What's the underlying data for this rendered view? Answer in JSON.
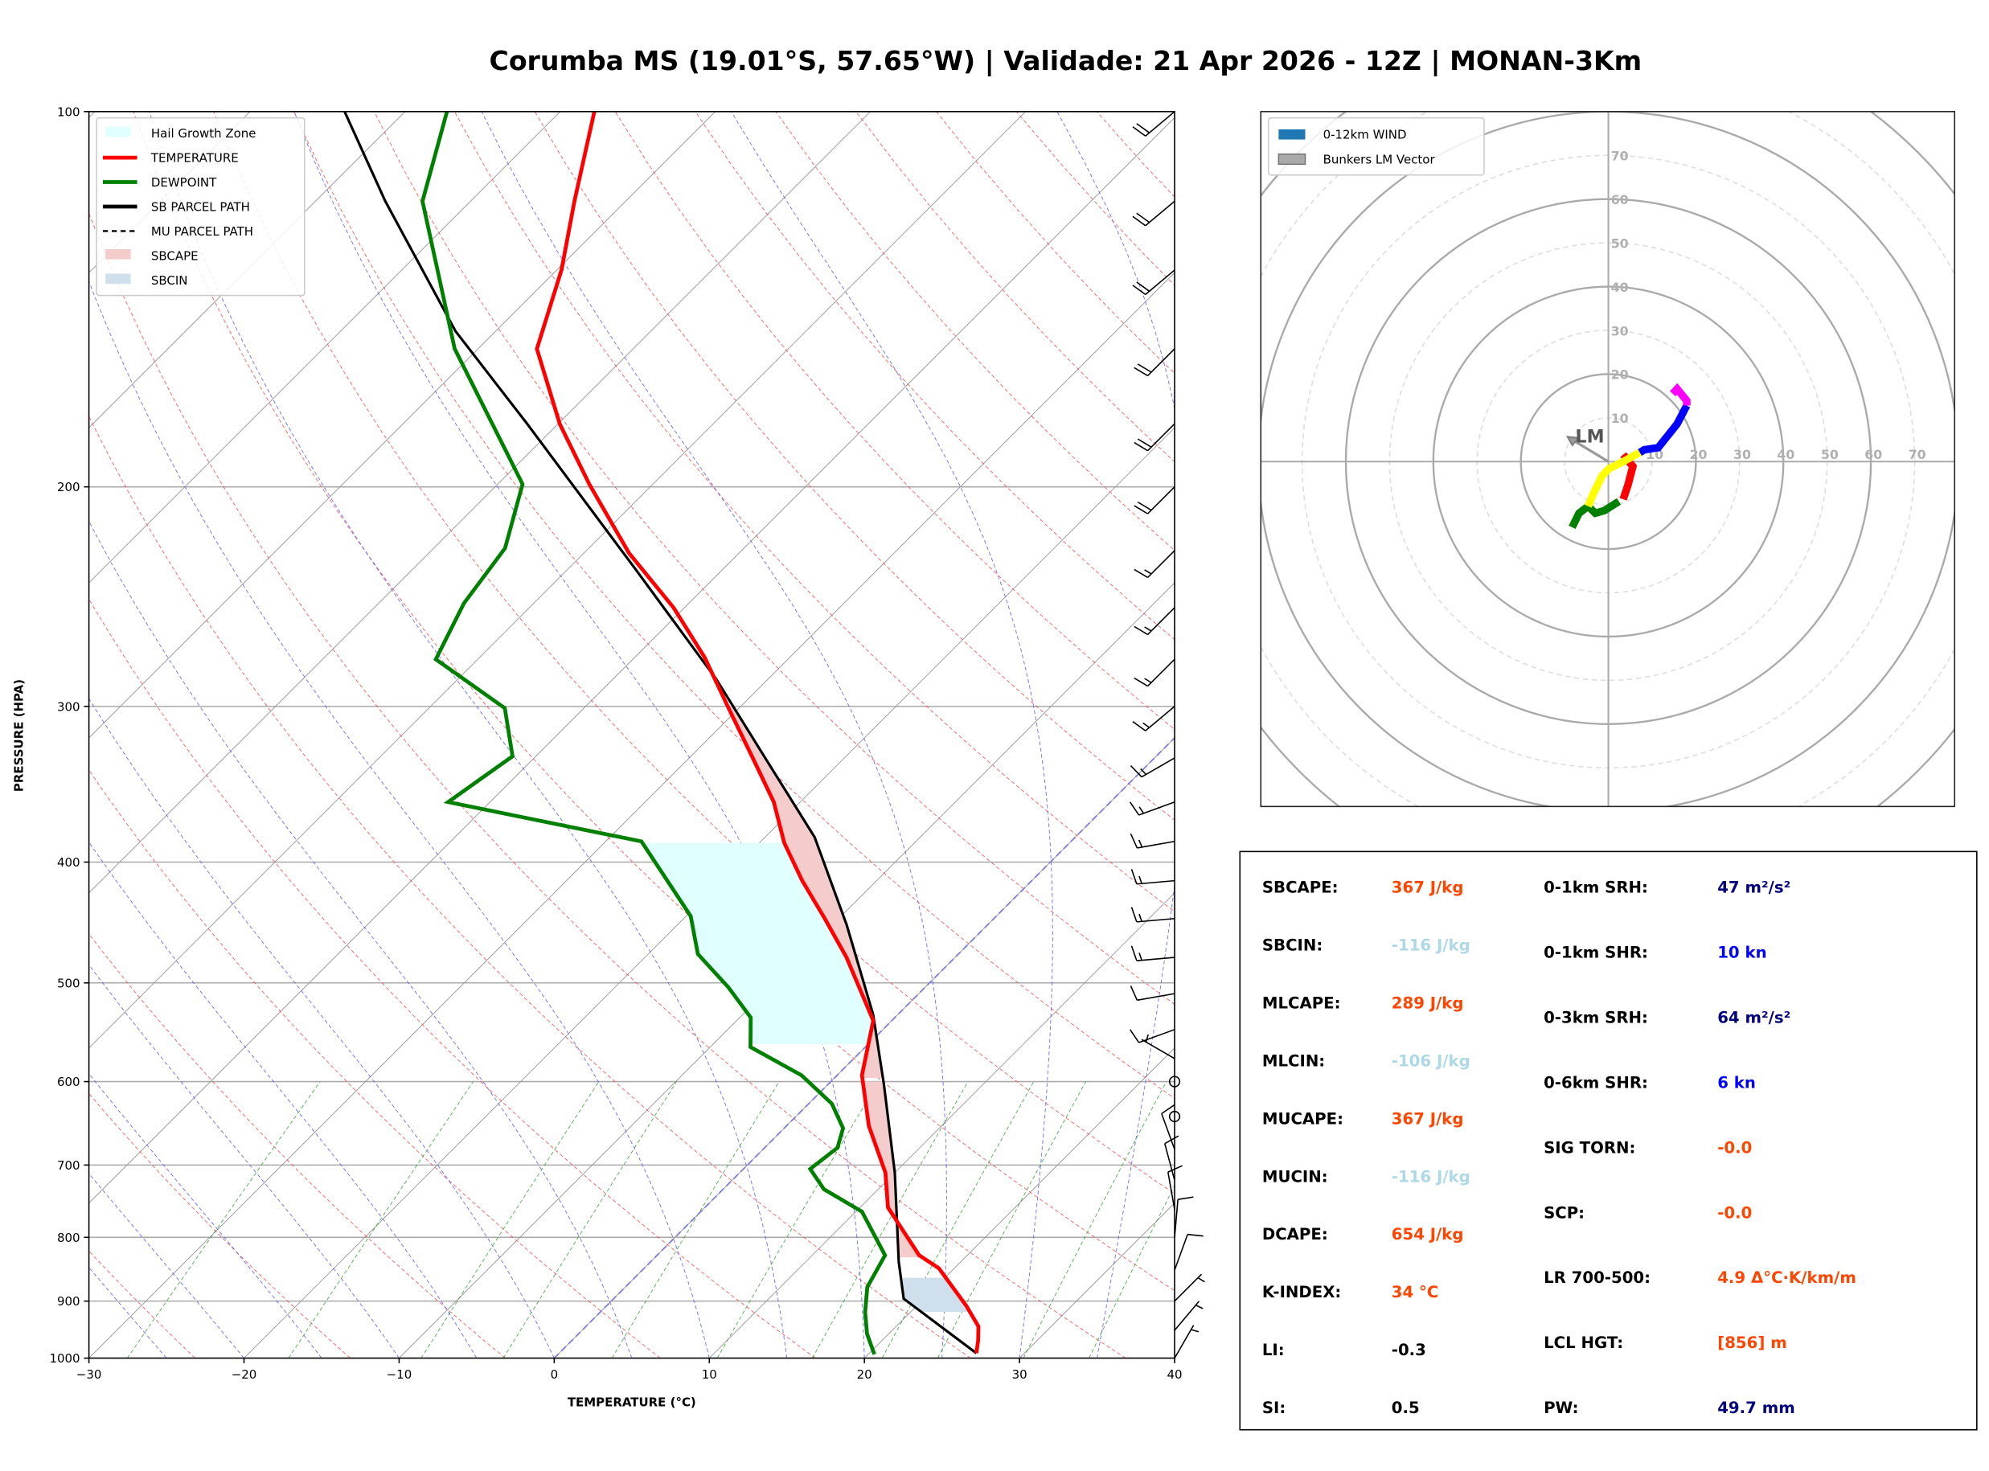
{
  "title": "Corumba MS (19.01°S, 57.65°W) | Validade: 21 Apr 2026 - 12Z | MONAN-3Km",
  "chart_data": [
    {
      "type": "line",
      "kind": "skew-t log-p",
      "xlabel": "TEMPERATURE (°C)",
      "ylabel": "PRESSURE (HPA)",
      "xlim": [
        -30,
        40
      ],
      "ylim": [
        1000,
        100
      ],
      "y_scale": "log",
      "xticks": [
        "−30",
        "−20",
        "−10",
        "0",
        "10",
        "20",
        "30",
        "40"
      ],
      "xtick_values": [
        -30,
        -20,
        -10,
        0,
        10,
        20,
        30,
        40
      ],
      "yticks": [
        "100",
        "200",
        "300",
        "400",
        "500",
        "600",
        "700",
        "800",
        "900",
        "1000"
      ],
      "ytick_values": [
        100,
        200,
        300,
        400,
        500,
        600,
        700,
        800,
        900,
        1000
      ],
      "grid": true,
      "legend_position": "top-left",
      "legend": [
        {
          "label": "Hail Growth Zone",
          "kind": "patch",
          "color": "#e0ffff"
        },
        {
          "label": "TEMPERATURE",
          "kind": "line",
          "color": "#ff0000"
        },
        {
          "label": "DEWPOINT",
          "kind": "line",
          "color": "#008000"
        },
        {
          "label": "SB PARCEL PATH",
          "kind": "line",
          "color": "#000000"
        },
        {
          "label": "MU PARCEL PATH",
          "kind": "dashed",
          "color": "#000000"
        },
        {
          "label": "SBCAPE",
          "kind": "patch",
          "color": "#f4cccc"
        },
        {
          "label": "SBCIN",
          "kind": "patch",
          "color": "#cfe0ec"
        }
      ],
      "series": [
        {
          "name": "TEMPERATURE",
          "color": "#ff0000",
          "p": [
            991,
            968,
            943,
            908,
            847,
            827,
            757,
            710,
            651,
            593,
            536,
            477,
            444,
            414,
            386,
            358,
            330,
            302,
            274,
            250,
            226,
            199,
            178,
            155,
            134,
            118,
            100
          ],
          "t": [
            26.9,
            26.2,
            25.3,
            23.2,
            19.0,
            16.9,
            11.8,
            9.4,
            5.3,
            1.6,
            -1.2,
            -7.0,
            -10.9,
            -14.8,
            -18.4,
            -21.7,
            -25.9,
            -30.5,
            -35.5,
            -40.7,
            -47.1,
            -54.1,
            -59.9,
            -66.2,
            -69.7,
            -73.3,
            -77.8
          ]
        },
        {
          "name": "DEWPOINT",
          "color": "#008000",
          "p": [
            993,
            956,
            919,
            877,
            827,
            763,
            732,
            705,
            678,
            654,
            625,
            593,
            563,
            533,
            504,
            474,
            442,
            385,
            358,
            329,
            301,
            275,
            248,
            224,
            199,
            155,
            118,
            100
          ],
          "t": [
            20.4,
            18.6,
            17.1,
            15.6,
            14.7,
            10.4,
            6.5,
            4.3,
            4.7,
            3.8,
            1.5,
            -2.3,
            -7.4,
            -9.3,
            -12.7,
            -16.8,
            -19.7,
            -27.7,
            -42.7,
            -41.5,
            -45.1,
            -52.7,
            -54.5,
            -55.4,
            -58.4,
            -71.5,
            -83.1,
            -87.3
          ]
        },
        {
          "name": "SB PARCEL PATH",
          "color": "#000000",
          "p": [
            991,
            896,
            837,
            710,
            603,
            530,
            449,
            382,
            330,
            285,
            233,
            178,
            150,
            118,
            100
          ],
          "t": [
            26.9,
            18.7,
            16.0,
            10.0,
            3.6,
            -1.6,
            -9.1,
            -16.8,
            -25.1,
            -33.4,
            -45.6,
            -62.0,
            -72.6,
            -85.5,
            -93.9
          ]
        }
      ],
      "hail_growth_zone_hpa": [
        560,
        385
      ],
      "winds": [
        {
          "p": 100,
          "dir": 230,
          "spd": 20
        },
        {
          "p": 118,
          "dir": 230,
          "spd": 20
        },
        {
          "p": 134,
          "dir": 230,
          "spd": 20
        },
        {
          "p": 155,
          "dir": 225,
          "spd": 20
        },
        {
          "p": 178,
          "dir": 225,
          "spd": 20
        },
        {
          "p": 200,
          "dir": 225,
          "spd": 20
        },
        {
          "p": 225,
          "dir": 225,
          "spd": 15
        },
        {
          "p": 250,
          "dir": 225,
          "spd": 15
        },
        {
          "p": 275,
          "dir": 225,
          "spd": 15
        },
        {
          "p": 300,
          "dir": 230,
          "spd": 15
        },
        {
          "p": 330,
          "dir": 240,
          "spd": 15
        },
        {
          "p": 358,
          "dir": 250,
          "spd": 15
        },
        {
          "p": 385,
          "dir": 260,
          "spd": 15
        },
        {
          "p": 414,
          "dir": 265,
          "spd": 15
        },
        {
          "p": 444,
          "dir": 265,
          "spd": 15
        },
        {
          "p": 477,
          "dir": 265,
          "spd": 15
        },
        {
          "p": 510,
          "dir": 260,
          "spd": 10
        },
        {
          "p": 545,
          "dir": 250,
          "spd": 10
        },
        {
          "p": 575,
          "dir": 300,
          "spd": 5
        },
        {
          "p": 600,
          "dir": 0,
          "spd": 0
        },
        {
          "p": 640,
          "dir": 0,
          "spd": 0
        },
        {
          "p": 680,
          "dir": 340,
          "spd": 10
        },
        {
          "p": 720,
          "dir": 345,
          "spd": 10
        },
        {
          "p": 760,
          "dir": 350,
          "spd": 10
        },
        {
          "p": 800,
          "dir": 5,
          "spd": 10
        },
        {
          "p": 850,
          "dir": 20,
          "spd": 10
        },
        {
          "p": 900,
          "dir": 45,
          "spd": 5
        },
        {
          "p": 950,
          "dir": 40,
          "spd": 5
        },
        {
          "p": 1000,
          "dir": 30,
          "spd": 5
        }
      ]
    },
    {
      "type": "line",
      "kind": "hodograph",
      "units": "kn",
      "rings": [
        10,
        20,
        30,
        40,
        50,
        60,
        70
      ],
      "ring_labels": [
        "10",
        "20",
        "30",
        "40",
        "50",
        "60",
        "70"
      ],
      "legend_position": "top-left",
      "legend": [
        {
          "label": "0-12km WIND",
          "color": "#1f77b4"
        },
        {
          "label": "Bunkers LM Vector",
          "color": "#aaaaaa"
        }
      ],
      "segments": [
        {
          "color": "#ff0000",
          "u": [
            3.4,
            5.6,
            4.5,
            3.4
          ],
          "v": [
            1.6,
            -1.1,
            -5.3,
            -8.6
          ]
        },
        {
          "color": "#008000",
          "u": [
            2.4,
            -0.9,
            -3.0,
            -4.6,
            -6.7,
            -8.3
          ],
          "v": [
            -9.1,
            -11.2,
            -11.8,
            -10.2,
            -11.8,
            -15.0
          ]
        },
        {
          "color": "#ffff00",
          "u": [
            -4.6,
            -3.5,
            -1.4,
            0.2,
            3.4,
            7.2
          ],
          "v": [
            -10.2,
            -7.5,
            -3.2,
            -1.6,
            0.0,
            2.1
          ]
        },
        {
          "color": "#0000ff",
          "u": [
            7.2,
            8.2,
            11.4,
            15.7,
            17.9
          ],
          "v": [
            2.1,
            2.7,
            3.2,
            8.6,
            12.8
          ]
        },
        {
          "color": "#ff00ff",
          "u": [
            17.9,
            17.9,
            15.7,
            14.7
          ],
          "v": [
            12.8,
            13.9,
            16.6,
            15.5
          ]
        }
      ],
      "bunkers_lm": {
        "label": "LM",
        "u": -9.4,
        "v": 5.7
      }
    }
  ],
  "stats": {
    "left": [
      {
        "label": "SBCAPE:",
        "value": "367 J/kg",
        "color": "#ff4500"
      },
      {
        "label": "SBCIN:",
        "value": "-116 J/kg",
        "color": "#add8e6"
      },
      {
        "label": "MLCAPE:",
        "value": "289 J/kg",
        "color": "#ff4500"
      },
      {
        "label": "MLCIN:",
        "value": "-106 J/kg",
        "color": "#add8e6"
      },
      {
        "label": "MUCAPE:",
        "value": "367 J/kg",
        "color": "#ff4500"
      },
      {
        "label": "MUCIN:",
        "value": "-116 J/kg",
        "color": "#add8e6"
      },
      {
        "label": "DCAPE:",
        "value": "654 J/kg",
        "color": "#ff4500"
      },
      {
        "label": "K-INDEX:",
        "value": "34 °C",
        "color": "#ff4500"
      },
      {
        "label": "LI:",
        "value": "-0.3",
        "color": "#000000"
      },
      {
        "label": "SI:",
        "value": "0.5",
        "color": "#000000"
      }
    ],
    "right": [
      {
        "label": "0-1km SRH:",
        "value": "47 m²/s²",
        "color": "#000080"
      },
      {
        "label": "0-1km SHR:",
        "value": "10 kn",
        "color": "#0000ff"
      },
      {
        "label": "0-3km SRH:",
        "value": "64 m²/s²",
        "color": "#000080"
      },
      {
        "label": "0-6km SHR:",
        "value": "6 kn",
        "color": "#0000ff"
      },
      {
        "label": "SIG TORN:",
        "value": "-0.0",
        "color": "#ff4500"
      },
      {
        "label": "SCP:",
        "value": "-0.0",
        "color": "#ff4500"
      },
      {
        "label": "LR 700-500:",
        "value": "4.9 Δ°C·K/km/m",
        "color": "#ff4500"
      },
      {
        "label": "LCL HGT:",
        "value": "[856] m",
        "color": "#ff4500"
      },
      {
        "label": "PW:",
        "value": "49.7 mm",
        "color": "#000080"
      }
    ]
  }
}
